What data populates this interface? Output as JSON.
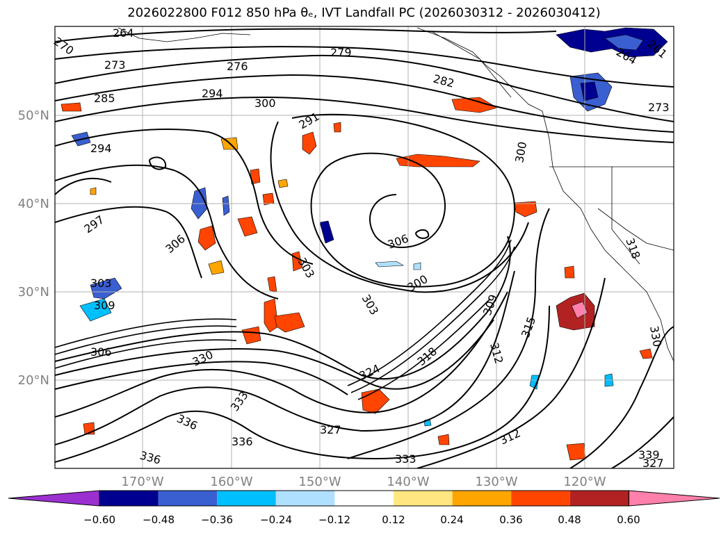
{
  "title": "2026022800 F012 850 hPa θₑ, IVT Landfall PC (2026030312 - 2026030412)",
  "lat_labels": [
    "50°N",
    "40°N",
    "30°N",
    "20°N"
  ],
  "lon_labels": [
    "170°W",
    "160°W",
    "150°W",
    "140°W",
    "130°W",
    "120°W"
  ],
  "colorbar": {
    "ticks": [
      "−0.60",
      "−0.48",
      "−0.36",
      "−0.24",
      "−0.12",
      "0.12",
      "0.24",
      "0.36",
      "0.48",
      "0.60"
    ],
    "colors": [
      "#9b30d0",
      "#000090",
      "#3a5fd0",
      "#00bfff",
      "#b0e0ff",
      "#ffffff",
      "#ffe680",
      "#ffa500",
      "#ff4500",
      "#b22222",
      "#ff80aa"
    ]
  },
  "contour_labels": [
    {
      "text": "264"
    },
    {
      "text": "270"
    },
    {
      "text": "273"
    },
    {
      "text": "276"
    },
    {
      "text": "279"
    },
    {
      "text": "282"
    },
    {
      "text": "285"
    },
    {
      "text": "294"
    },
    {
      "text": "300"
    },
    {
      "text": "291"
    },
    {
      "text": "294"
    },
    {
      "text": "273"
    },
    {
      "text": "264"
    },
    {
      "text": "261"
    },
    {
      "text": "297"
    },
    {
      "text": "306"
    },
    {
      "text": "303"
    },
    {
      "text": "309"
    },
    {
      "text": "306"
    },
    {
      "text": "300"
    },
    {
      "text": "303"
    },
    {
      "text": "309"
    },
    {
      "text": "315"
    },
    {
      "text": "312"
    },
    {
      "text": "324"
    },
    {
      "text": "318"
    },
    {
      "text": "330"
    },
    {
      "text": "333"
    },
    {
      "text": "336"
    },
    {
      "text": "336"
    },
    {
      "text": "336"
    },
    {
      "text": "327"
    },
    {
      "text": "333"
    },
    {
      "text": "312"
    },
    {
      "text": "306"
    },
    {
      "text": "303"
    },
    {
      "text": "300"
    },
    {
      "text": "318"
    },
    {
      "text": "330"
    },
    {
      "text": "327"
    },
    {
      "text": "339"
    }
  ]
}
